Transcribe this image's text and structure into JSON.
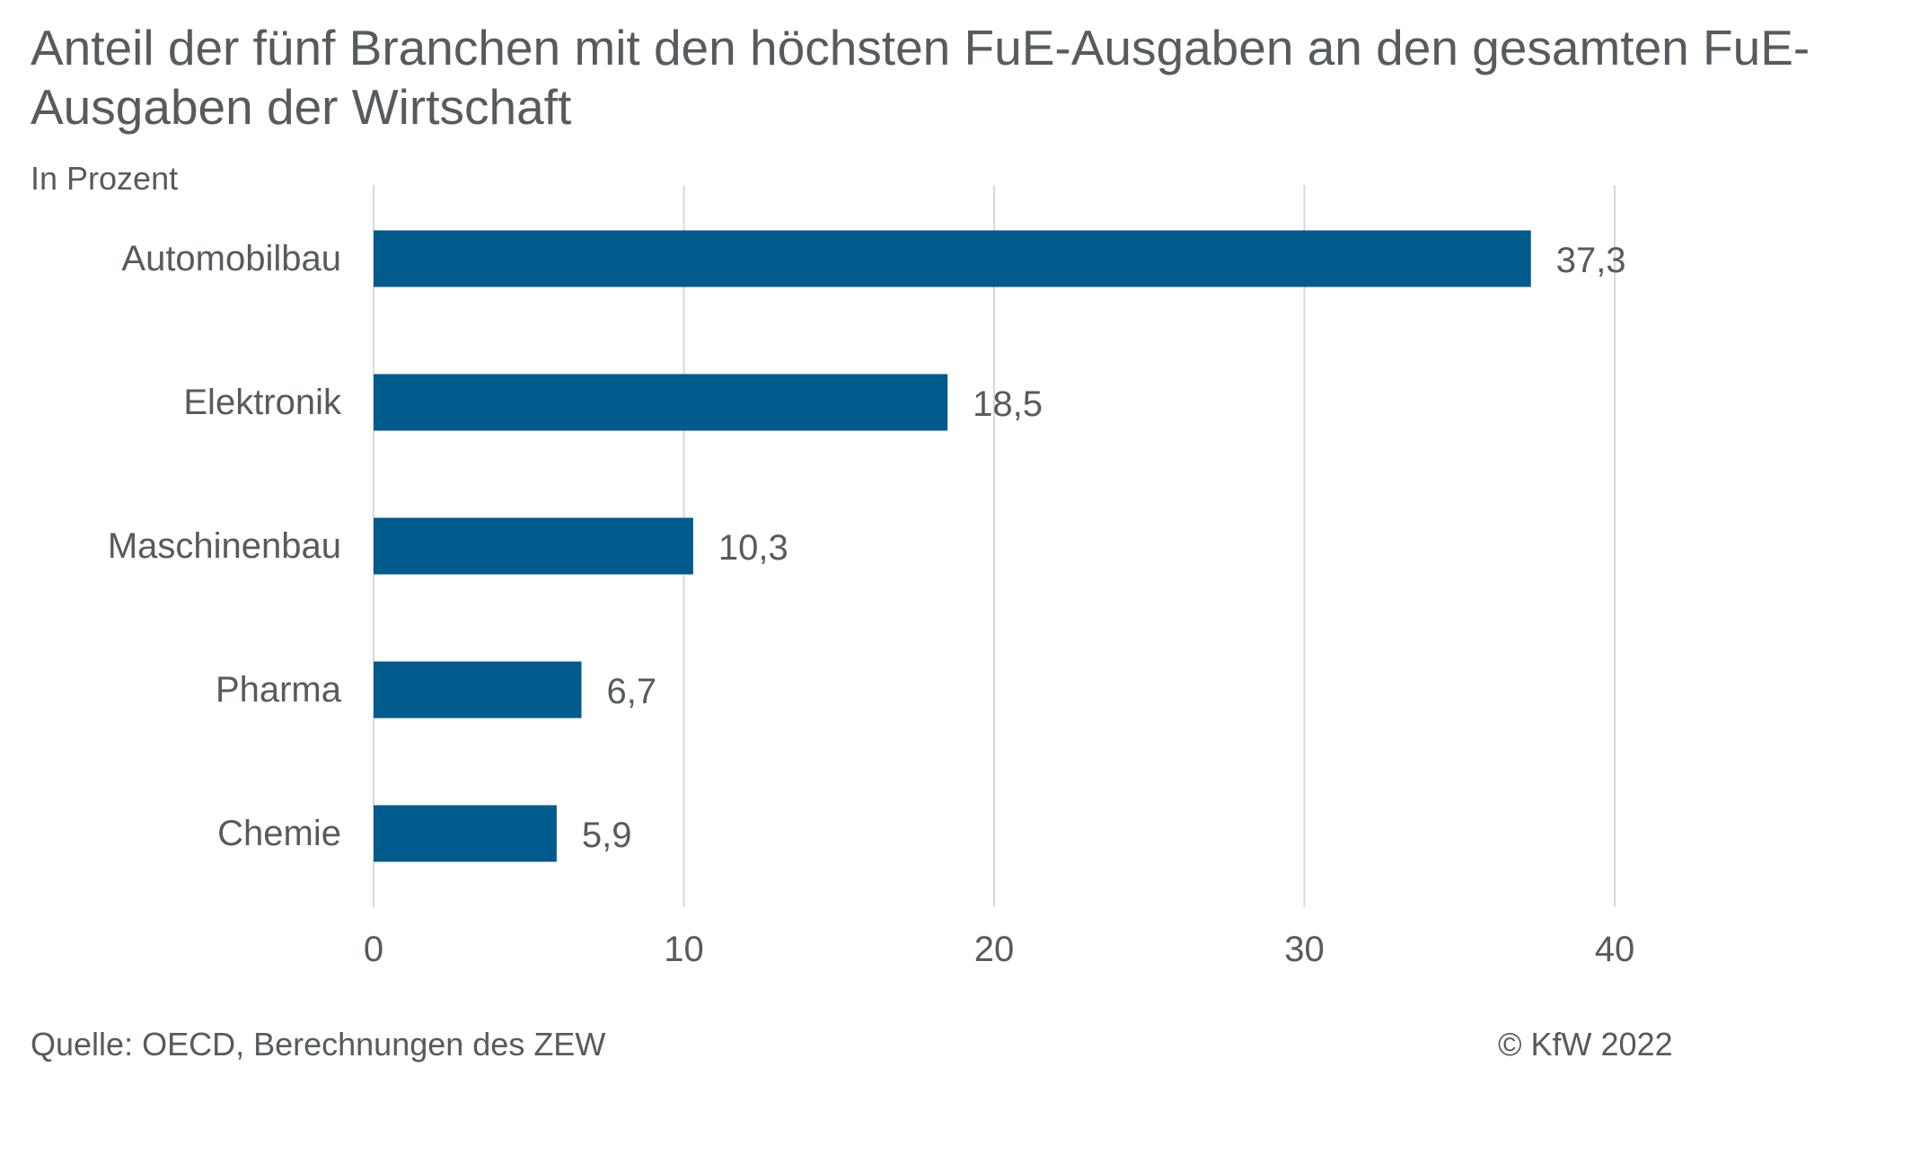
{
  "title": "Anteil der fünf Branchen mit den höchsten FuE-Ausgaben an den gesamten FuE-Ausgaben der Wirtschaft",
  "subtitle": "In Prozent",
  "source": "Quelle: OECD, Berechnungen des ZEW",
  "copyright": "© KfW 2022",
  "colors": {
    "bar": "#005a8c",
    "grid": "#d9d9d9",
    "text": "#555b5f"
  },
  "chart_data": {
    "type": "bar",
    "orientation": "horizontal",
    "categories": [
      "Automobilbau",
      "Elektronik",
      "Maschinenbau",
      "Pharma",
      "Chemie"
    ],
    "values": [
      37.3,
      18.5,
      10.3,
      6.7,
      5.9
    ],
    "data_labels": [
      "37,3",
      "18,5",
      "10,3",
      "6,7",
      "5,9"
    ],
    "x_ticks": [
      0,
      10,
      20,
      30,
      40
    ],
    "xlim": [
      0,
      40
    ],
    "grid": true,
    "legend": "none"
  }
}
